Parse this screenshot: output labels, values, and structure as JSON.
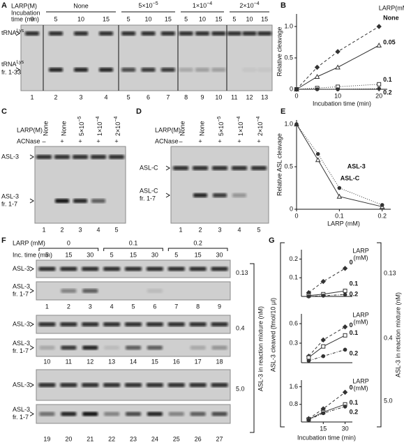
{
  "panel_labels": [
    "A",
    "B",
    "C",
    "D",
    "E",
    "F",
    "G"
  ],
  "panel_a": {
    "larp_label": "LARP(M)",
    "time_label": [
      "Incubation",
      "time (min)"
    ],
    "groups": [
      "None",
      {
        "base": "5×10",
        "sup": "−5"
      },
      {
        "base": "1×10",
        "sup": "−4"
      },
      {
        "base": "2×10",
        "sup": "−4"
      }
    ],
    "times": [
      "0",
      "5",
      "10",
      "15",
      "5",
      "10",
      "15",
      "5",
      "10",
      "15",
      "5",
      "10",
      "15"
    ],
    "band": {
      "base": "tRNA",
      "sup": "Lys"
    },
    "fragment": [
      {
        "base": "tRNA",
        "sup": "Lys"
      },
      "fr. 1-33"
    ],
    "lanes": [
      "1",
      "2",
      "3",
      "4",
      "5",
      "6",
      "7",
      "8",
      "9",
      "10",
      "11",
      "12",
      "13"
    ]
  },
  "panel_c": {
    "larp_label": "LARP(M)",
    "acnase_label": "ACNase",
    "larp": [
      "None",
      "None",
      {
        "base": "5×10",
        "sup": "−5"
      },
      {
        "base": "1×10",
        "sup": "−4"
      },
      {
        "base": "2×10",
        "sup": "−4"
      }
    ],
    "acnase": [
      "–",
      "+",
      "+",
      "+",
      "+"
    ],
    "band": "ASL-3",
    "fragment": [
      "ASL-3",
      "fr. 1-7"
    ],
    "lanes": [
      "1",
      "2",
      "3",
      "4",
      "5"
    ]
  },
  "panel_d": {
    "larp_label": "LARP(M)",
    "acnase_label": "ACNase",
    "larp": [
      "None",
      "None",
      {
        "base": "5×10",
        "sup": "−5"
      },
      {
        "base": "1×10",
        "sup": "−4"
      },
      {
        "base": "2×10",
        "sup": "−4"
      }
    ],
    "acnase": [
      "–",
      "+",
      "+",
      "+",
      "+"
    ],
    "band": "ASL-C",
    "fragment": [
      "ASL-C",
      "fr. 1-7"
    ],
    "lanes": [
      "1",
      "2",
      "3",
      "4",
      "5"
    ]
  },
  "panel_f": {
    "larp_label": "LARP (mM)",
    "larp_groups": [
      "0",
      "0.1",
      "0.2"
    ],
    "time_label": "Inc. time (min)",
    "times": [
      "5",
      "15",
      "30"
    ],
    "band": "ASL-3",
    "fragment": [
      "ASL-3",
      "fr. 1-7"
    ],
    "concentrations": [
      "0.13",
      "0.4",
      "5.0"
    ],
    "lanes": [
      "1",
      "2",
      "3",
      "4",
      "5",
      "6",
      "7",
      "8",
      "9",
      "10",
      "11",
      "12",
      "13",
      "14",
      "15",
      "16",
      "17",
      "18",
      "19",
      "20",
      "21",
      "22",
      "23",
      "24",
      "25",
      "26",
      "27"
    ],
    "side_label": "ASL-3 in reaction mixture (nM)"
  },
  "panel_g": {
    "ylabel": "ASL-3 cleaved (fmol/10 μl)",
    "xlabel": "Incubation time (min)",
    "concentrations": [
      "0.13",
      "0.4",
      "5.0"
    ],
    "side_label": "ASL-3 in reaction mixture (nM)"
  },
  "chart_data": [
    {
      "type": "line",
      "xlabel": "Incubation  time (min)",
      "ylabel": "Relative cleavage",
      "xlim": [
        0,
        22
      ],
      "ylim": [
        0,
        1.2
      ],
      "xticks": [
        0,
        10,
        20
      ],
      "yticks": [
        0,
        0.5,
        {
          "value": 1,
          "label": "1.0"
        }
      ],
      "legend_title": "LARP(mM)",
      "x": [
        0,
        5,
        10,
        20
      ],
      "series": [
        {
          "name": "None",
          "color": "#333333",
          "marker": "diamond",
          "dash": "4 3",
          "values": [
            0,
            0.35,
            0.6,
            1.0
          ]
        },
        {
          "name": "0.05",
          "color": "#333333",
          "marker": "triangle",
          "dash": "",
          "values": [
            0,
            0.2,
            0.35,
            0.7
          ]
        },
        {
          "name": "0.1",
          "color": "#333333",
          "marker": "square",
          "dash": "1 2",
          "values": [
            0,
            0.02,
            0.04,
            0.08
          ]
        },
        {
          "name": "0.2",
          "color": "#333333",
          "marker": "circle",
          "dash": "1 2",
          "values": [
            0,
            0,
            0,
            0.01
          ]
        }
      ]
    },
    {
      "type": "line",
      "xlabel": "LARP (mM)",
      "ylabel": "Relative ASL cleavage",
      "xlim": [
        0,
        0.22
      ],
      "ylim": [
        0,
        1.05
      ],
      "xticks": [
        0,
        0.1,
        0.2
      ],
      "yticks": [
        0,
        0.5,
        {
          "value": 1,
          "label": "1.0"
        }
      ],
      "x": [
        0,
        0.05,
        0.1,
        0.2
      ],
      "series": [
        {
          "name": "ASL-C",
          "color": "#333333",
          "marker": "tri-open",
          "dash": "",
          "values": [
            1.0,
            0.58,
            0.15,
            0.03
          ]
        },
        {
          "name": "ASL-3",
          "color": "#333333",
          "marker": "circle",
          "dash": "1 2",
          "values": [
            1.0,
            0.65,
            0.25,
            0.05
          ]
        }
      ]
    },
    {
      "type": "line",
      "xlim": [
        0,
        35
      ],
      "ylim": [
        0,
        0.25
      ],
      "yticks": [
        0.1,
        0.2
      ],
      "legend_title": [
        "LARP",
        "(mM)"
      ],
      "x": [
        5,
        15,
        30
      ],
      "series": [
        {
          "name": "0",
          "color": "#333333",
          "marker": "diamond",
          "dash": "4 3",
          "values": [
            0.02,
            0.08,
            0.15
          ]
        },
        {
          "name": "0.1",
          "color": "#333333",
          "marker": "square",
          "dash": "",
          "values": [
            0.005,
            0.012,
            0.03
          ]
        },
        {
          "name": "0.2",
          "color": "#333333",
          "marker": "circle",
          "dash": "4 2 1 2",
          "values": [
            0,
            0.004,
            0.01
          ]
        }
      ]
    },
    {
      "type": "line",
      "xlim": [
        0,
        35
      ],
      "ylim": [
        0,
        0.75
      ],
      "yticks": [
        0.3,
        0.6
      ],
      "legend_title": [
        "LARP",
        "(mM)"
      ],
      "x": [
        5,
        15,
        30
      ],
      "series": [
        {
          "name": "0",
          "color": "#333333",
          "marker": "diamond",
          "dash": "4 3",
          "values": [
            0.1,
            0.35,
            0.55
          ]
        },
        {
          "name": "0.1",
          "color": "#333333",
          "marker": "square",
          "dash": "",
          "values": [
            0.08,
            0.25,
            0.42
          ]
        },
        {
          "name": "0.2",
          "color": "#333333",
          "marker": "circle",
          "dash": "4 2 1 2",
          "values": [
            0.03,
            0.1,
            0.2
          ]
        }
      ]
    },
    {
      "type": "line",
      "xlim": [
        0,
        35
      ],
      "ylim": [
        0,
        1.9
      ],
      "xticks": [
        15,
        30
      ],
      "yticks": [
        0.8,
        1.6
      ],
      "legend_title": [
        "LARP",
        "(mM)"
      ],
      "x": [
        5,
        15,
        30
      ],
      "series": [
        {
          "name": "0",
          "color": "#333333",
          "marker": "diamond",
          "dash": "4 3",
          "values": [
            0.15,
            0.6,
            1.35
          ]
        },
        {
          "name": "0.1",
          "color": "#333333",
          "marker": "square",
          "dash": "",
          "values": [
            0.12,
            0.45,
            0.8
          ]
        },
        {
          "name": "0.2",
          "color": "#333333",
          "marker": "circle",
          "dash": "4 2 1 2",
          "values": [
            0.1,
            0.4,
            0.7
          ]
        }
      ]
    }
  ]
}
